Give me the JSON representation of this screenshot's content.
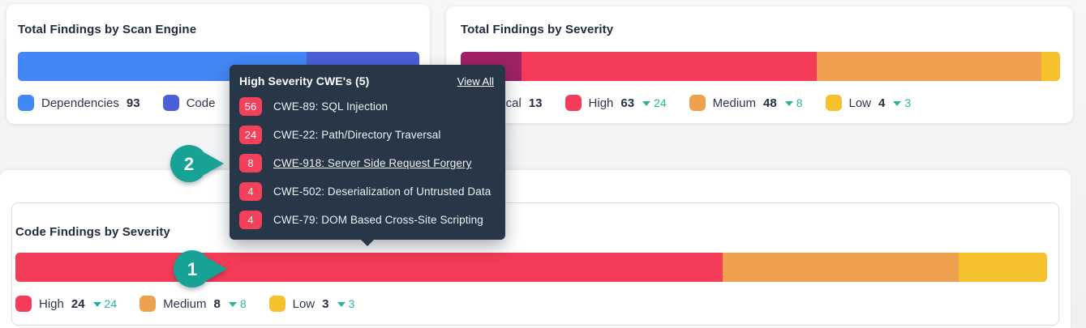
{
  "scan_engine": {
    "title": "Total Findings by Scan Engine",
    "segments": [
      {
        "name": "dependencies",
        "color": "#4287f5",
        "value": 72
      },
      {
        "name": "code",
        "color": "#4b5fd6",
        "value": 28
      }
    ],
    "legend": [
      {
        "label": "Dependencies",
        "value": "93",
        "color": "#4287f5"
      },
      {
        "label": "Code",
        "value": "",
        "color": "#4b5fd6"
      }
    ]
  },
  "severity": {
    "title": "Total Findings by Severity",
    "segments": [
      {
        "name": "critical",
        "color": "#a02166",
        "value": 13
      },
      {
        "name": "high",
        "color": "#f43b57",
        "value": 63
      },
      {
        "name": "medium",
        "color": "#efa04f",
        "value": 48
      },
      {
        "name": "low",
        "color": "#f5c12d",
        "value": 4
      }
    ],
    "legend": [
      {
        "label": "Critical",
        "value": "13",
        "color": "#a02166"
      },
      {
        "label": "High",
        "value": "63",
        "delta": "24",
        "color": "#f43b57"
      },
      {
        "label": "Medium",
        "value": "48",
        "delta": "8",
        "color": "#efa04f"
      },
      {
        "label": "Low",
        "value": "4",
        "delta": "3",
        "color": "#f5c12d"
      }
    ]
  },
  "code_findings": {
    "title": "Code Findings by Severity",
    "segments": [
      {
        "name": "high",
        "color": "#f43b57",
        "value": 24
      },
      {
        "name": "medium",
        "color": "#efa04f",
        "value": 8
      },
      {
        "name": "low",
        "color": "#f5c12d",
        "value": 3
      }
    ],
    "legend": [
      {
        "label": "High",
        "value": "24",
        "delta": "24",
        "color": "#f43b57"
      },
      {
        "label": "Medium",
        "value": "8",
        "delta": "8",
        "color": "#efa04f"
      },
      {
        "label": "Low",
        "value": "3",
        "delta": "3",
        "color": "#f5c12d"
      }
    ]
  },
  "cwe_tooltip": {
    "title": "High Severity CWE's (5)",
    "view_all_label": "View All",
    "badge_color": "#f4405a",
    "items": [
      {
        "count": "56",
        "label": "CWE-89: SQL Injection",
        "hovered": false
      },
      {
        "count": "24",
        "label": "CWE-22: Path/Directory Traversal",
        "hovered": false
      },
      {
        "count": "8",
        "label": "CWE-918: Server Side Request Forgery",
        "hovered": true
      },
      {
        "count": "4",
        "label": "CWE-502: Deserialization of Untrusted Data",
        "hovered": false
      },
      {
        "count": "4",
        "label": "CWE-79: DOM Based Cross-Site Scripting",
        "hovered": false
      }
    ]
  },
  "annotations": [
    {
      "label": "2",
      "color": "#16a294"
    },
    {
      "label": "1",
      "color": "#16a294"
    }
  ],
  "colors": {
    "delta_teal": "#2bb39e",
    "tooltip_bg": "#273747",
    "card_bg": "#ffffff",
    "page_bg": "#f2f3f5"
  }
}
